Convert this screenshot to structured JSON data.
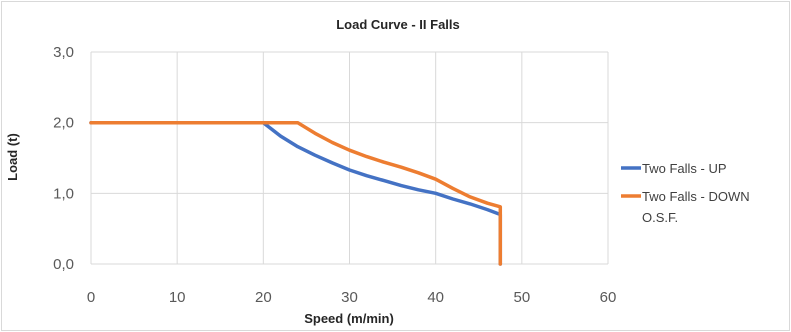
{
  "chart_data": {
    "type": "line",
    "title": "Load Curve - II Falls",
    "xlabel": "Speed (m/min)",
    "ylabel": "Load (t)",
    "xlim": [
      0,
      60
    ],
    "ylim": [
      0,
      3
    ],
    "x_ticks": [
      "0",
      "10",
      "20",
      "30",
      "40",
      "50",
      "60"
    ],
    "y_ticks": [
      "0,0",
      "1,0",
      "2,0",
      "3,0"
    ],
    "grid": true,
    "legend_position": "right",
    "series": [
      {
        "name": "Two Falls - UP",
        "color": "#4472c4",
        "x": [
          0,
          20,
          22,
          24,
          26,
          28,
          30,
          32,
          34,
          36,
          38,
          40,
          42,
          44,
          46,
          47.5,
          47.5
        ],
        "y": [
          2.0,
          2.0,
          1.81,
          1.66,
          1.54,
          1.43,
          1.33,
          1.25,
          1.18,
          1.11,
          1.05,
          1.0,
          0.92,
          0.85,
          0.77,
          0.7,
          0.0
        ]
      },
      {
        "name": "Two Falls - DOWN O.S.F.",
        "color": "#ed7d31",
        "x": [
          0,
          24,
          26,
          28,
          30,
          32,
          34,
          36,
          38,
          40,
          42,
          44,
          46,
          47.5,
          47.5
        ],
        "y": [
          2.0,
          2.0,
          1.85,
          1.72,
          1.61,
          1.52,
          1.44,
          1.37,
          1.29,
          1.2,
          1.07,
          0.95,
          0.86,
          0.81,
          0.0
        ]
      }
    ]
  }
}
